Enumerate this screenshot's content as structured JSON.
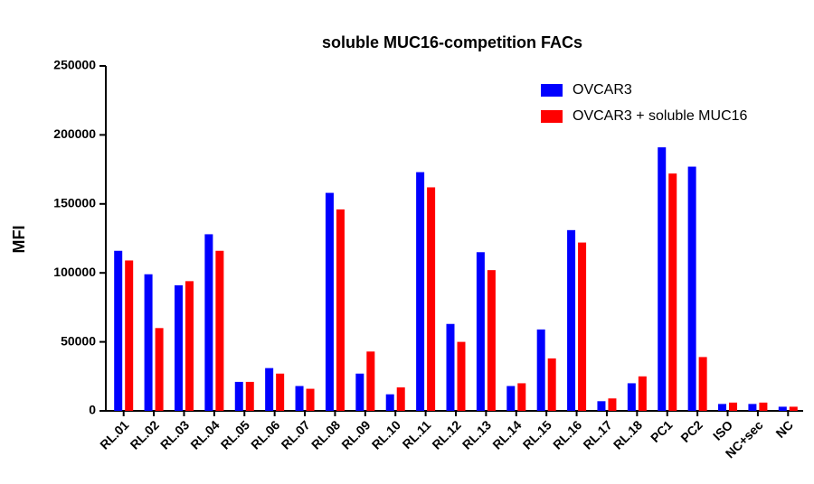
{
  "chart_data": {
    "type": "bar",
    "title": "soluble MUC16-competition FACs",
    "y_label": "MFI",
    "categories": [
      "RL.01",
      "RL.02",
      "RL.03",
      "RL.04",
      "RL.05",
      "RL.06",
      "RL.07",
      "RL.08",
      "RL.09",
      "RL.10",
      "RL.11",
      "RL.12",
      "RL.13",
      "RL.14",
      "RL.15",
      "RL.16",
      "RL.17",
      "RL.18",
      "PC1",
      "PC2",
      "ISO",
      "NC+sec",
      "NC"
    ],
    "series": [
      {
        "name": "OVCAR3",
        "color": "#0000ff",
        "values": [
          116000,
          99000,
          91000,
          128000,
          21000,
          31000,
          18000,
          158000,
          27000,
          12000,
          173000,
          63000,
          115000,
          18000,
          59000,
          131000,
          7000,
          20000,
          191000,
          177000,
          5000,
          5000,
          3000
        ]
      },
      {
        "name": "OVCAR3 + soluble MUC16",
        "color": "#ff0000",
        "values": [
          109000,
          60000,
          94000,
          116000,
          21000,
          27000,
          16000,
          146000,
          43000,
          17000,
          162000,
          50000,
          102000,
          20000,
          38000,
          122000,
          9000,
          25000,
          172000,
          39000,
          6000,
          6000,
          3000
        ]
      }
    ],
    "ylim": [
      0,
      250000
    ],
    "yticks": [
      0,
      50000,
      100000,
      150000,
      200000,
      250000
    ],
    "legend": "top-right"
  }
}
